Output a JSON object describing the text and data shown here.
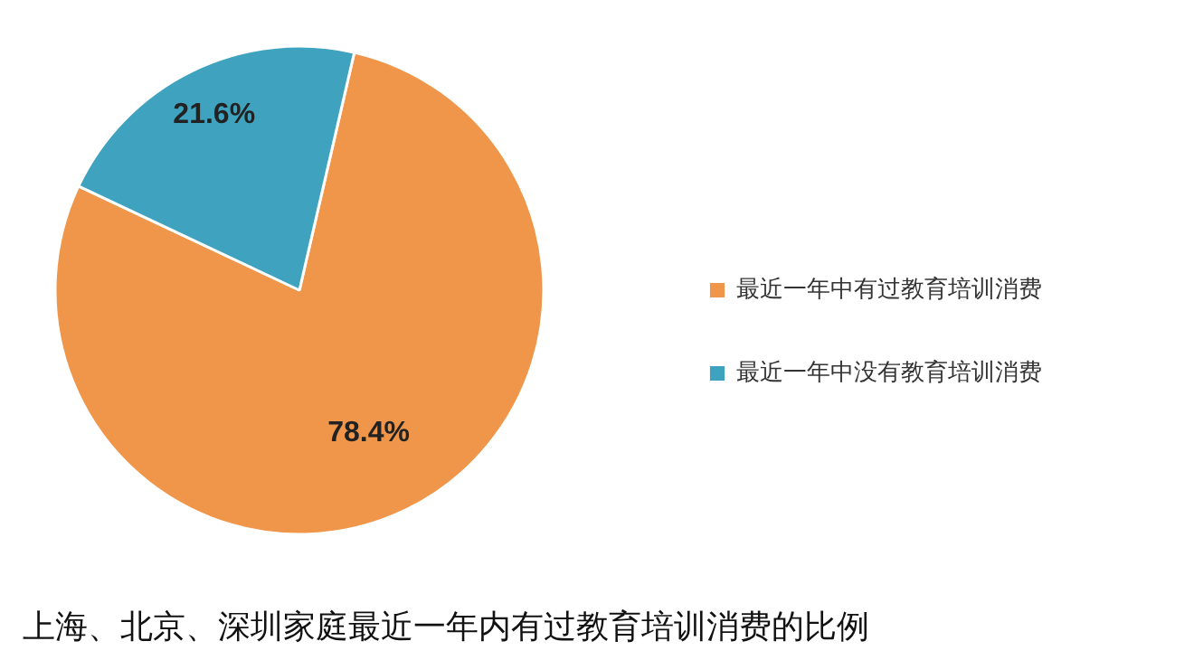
{
  "chart_data": {
    "type": "pie",
    "categories": [
      "最近一年中有过教育培训消费",
      "最近一年中没有教育培训消费"
    ],
    "values": [
      78.4,
      21.6
    ],
    "colors": [
      "#f0964a",
      "#3fa3c0"
    ],
    "value_labels": [
      "78.4%",
      "21.6%"
    ],
    "legend": "right",
    "annotations": [
      "上海、北京、深圳家庭最近一年内有过教育培训消费的比例"
    ]
  }
}
